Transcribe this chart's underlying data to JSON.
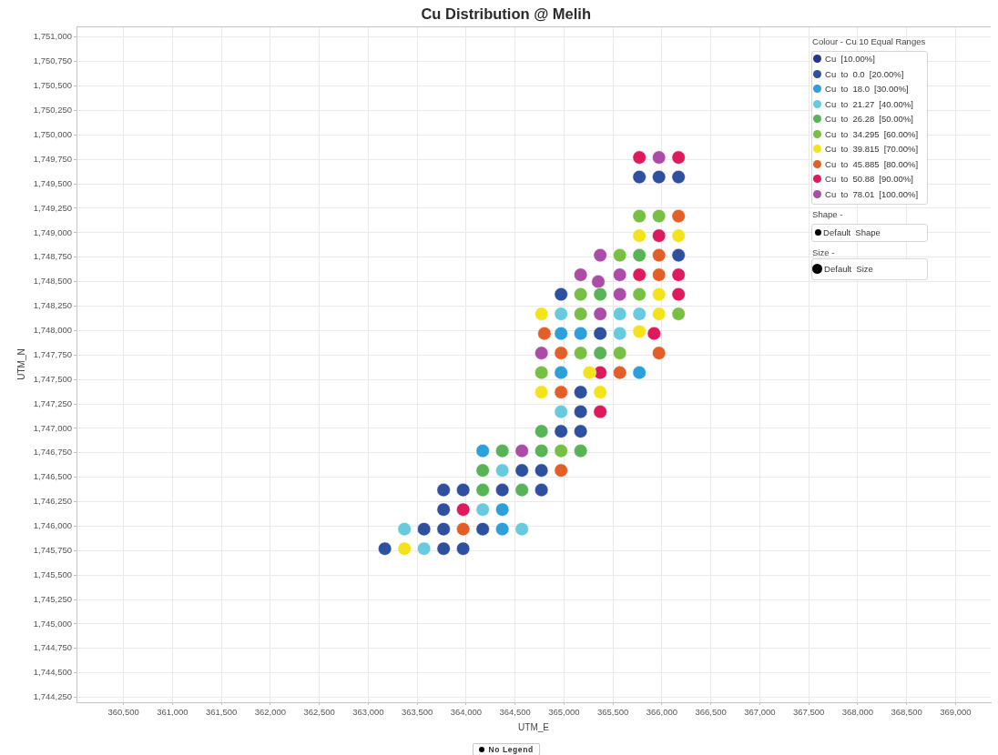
{
  "chart_data": {
    "type": "scatter",
    "title": "Cu Distribution @ Melih",
    "xlabel": "UTM_E",
    "ylabel": "UTM_N",
    "legend_title": "Colour - Cu 10 Equal Ranges",
    "legend": "top right",
    "grid": true,
    "marker": "circle",
    "xlim": [
      360020,
      369360
    ],
    "ylim": [
      1744200,
      1751110
    ],
    "xticks": [
      {
        "value": 360500,
        "label": "360,500"
      },
      {
        "value": 361000,
        "label": "361,000"
      },
      {
        "value": 361500,
        "label": "361,500"
      },
      {
        "value": 362000,
        "label": "362,000"
      },
      {
        "value": 362500,
        "label": "362,500"
      },
      {
        "value": 363000,
        "label": "363,000"
      },
      {
        "value": 363500,
        "label": "363,500"
      },
      {
        "value": 364000,
        "label": "364,000"
      },
      {
        "value": 364500,
        "label": "364,500"
      },
      {
        "value": 365000,
        "label": "365,000"
      },
      {
        "value": 365500,
        "label": "365,500"
      },
      {
        "value": 366000,
        "label": "366,000"
      },
      {
        "value": 366500,
        "label": "366,500"
      },
      {
        "value": 367000,
        "label": "367,000"
      },
      {
        "value": 367500,
        "label": "367,500"
      },
      {
        "value": 368000,
        "label": "368,000"
      },
      {
        "value": 368500,
        "label": "368,500"
      },
      {
        "value": 369000,
        "label": "369,000"
      }
    ],
    "yticks": [
      {
        "value": 1744250,
        "label": "1,744,250"
      },
      {
        "value": 1744500,
        "label": "1,744,500"
      },
      {
        "value": 1744750,
        "label": "1,744,750"
      },
      {
        "value": 1745000,
        "label": "1,745,000"
      },
      {
        "value": 1745250,
        "label": "1,745,250"
      },
      {
        "value": 1745500,
        "label": "1,745,500"
      },
      {
        "value": 1745750,
        "label": "1,745,750"
      },
      {
        "value": 1746000,
        "label": "1,746,000"
      },
      {
        "value": 1746250,
        "label": "1,746,250"
      },
      {
        "value": 1746500,
        "label": "1,746,500"
      },
      {
        "value": 1746750,
        "label": "1,746,750"
      },
      {
        "value": 1747000,
        "label": "1,747,000"
      },
      {
        "value": 1747250,
        "label": "1,747,250"
      },
      {
        "value": 1747500,
        "label": "1,747,500"
      },
      {
        "value": 1747750,
        "label": "1,747,750"
      },
      {
        "value": 1748000,
        "label": "1,748,000"
      },
      {
        "value": 1748250,
        "label": "1,748,250"
      },
      {
        "value": 1748500,
        "label": "1,748,500"
      },
      {
        "value": 1748750,
        "label": "1,748,750"
      },
      {
        "value": 1749000,
        "label": "1,749,000"
      },
      {
        "value": 1749250,
        "label": "1,749,250"
      },
      {
        "value": 1749500,
        "label": "1,749,500"
      },
      {
        "value": 1749750,
        "label": "1,749,750"
      },
      {
        "value": 1750000,
        "label": "1,750,000"
      },
      {
        "value": 1750250,
        "label": "1,750,250"
      },
      {
        "value": 1750500,
        "label": "1,750,500"
      },
      {
        "value": 1750750,
        "label": "1,750,750"
      },
      {
        "value": 1751000,
        "label": "1,751,000"
      }
    ],
    "series": [
      {
        "name": "Cu [10.00%]",
        "color": "#27348b"
      },
      {
        "name": "Cu to 0.0 [20.00%]",
        "color": "#2f509f",
        "x": [
          365770,
          365970,
          366170,
          366170,
          364970,
          365370,
          365170,
          365170,
          364970,
          365170,
          364570,
          364770,
          363770,
          363970,
          364370,
          364770,
          363770,
          363570,
          363770,
          364170,
          363170,
          363770,
          363970
        ],
        "values": [
          1749570,
          1749570,
          1749570,
          1748770,
          1748370,
          1747970,
          1747370,
          1747170,
          1746970,
          1746970,
          1746570,
          1746570,
          1746370,
          1746370,
          1746370,
          1746370,
          1746170,
          1745970,
          1745970,
          1745970,
          1745770,
          1745770,
          1745770
        ]
      },
      {
        "name": "Cu to 18.0 [30.00%]",
        "color": "#2ba0da",
        "x": [
          364970,
          365170,
          364970,
          365770,
          364170,
          364370,
          364370
        ],
        "values": [
          1747970,
          1747970,
          1747570,
          1747570,
          1746770,
          1746170,
          1745970
        ]
      },
      {
        "name": "Cu to 21.27 [40.00%]",
        "color": "#68cade",
        "x": [
          364970,
          365570,
          365770,
          365570,
          364970,
          364370,
          364170,
          363370,
          364570,
          363570
        ],
        "values": [
          1748170,
          1748170,
          1748170,
          1747970,
          1747170,
          1746570,
          1746170,
          1745970,
          1745970,
          1745770
        ]
      },
      {
        "name": "Cu to 26.28 [50.00%]",
        "color": "#58b456",
        "x": [
          365770,
          365370,
          365370,
          364770,
          364370,
          364770,
          365170,
          364170,
          364170,
          364570
        ],
        "values": [
          1748770,
          1748370,
          1747770,
          1746970,
          1746770,
          1746770,
          1746770,
          1746570,
          1746370,
          1746370
        ]
      },
      {
        "name": "Cu to 34.295 [60.00%]",
        "color": "#78c043",
        "x": [
          365770,
          365970,
          365570,
          365170,
          365770,
          365170,
          366170,
          365170,
          365570,
          364770,
          364970
        ],
        "values": [
          1749170,
          1749170,
          1748770,
          1748370,
          1748370,
          1748170,
          1748170,
          1747770,
          1747770,
          1747570,
          1746770
        ]
      },
      {
        "name": "Cu to 39.815 [70.00%]",
        "color": "#f3e31b",
        "x": [
          365770,
          366170,
          365970,
          364770,
          365970,
          365770,
          365260,
          364770,
          365370,
          363370
        ],
        "values": [
          1748970,
          1748970,
          1748370,
          1748170,
          1748170,
          1747990,
          1747570,
          1747370,
          1747370,
          1745770
        ]
      },
      {
        "name": "Cu to 45.885 [80.00%]",
        "color": "#e45f28",
        "x": [
          366170,
          365970,
          365970,
          364800,
          364970,
          365970,
          365570,
          364970,
          364970,
          363970
        ],
        "values": [
          1749170,
          1748770,
          1748570,
          1747970,
          1747770,
          1747770,
          1747570,
          1747370,
          1746570,
          1745970
        ]
      },
      {
        "name": "Cu to 50.88 [90.00%]",
        "color": "#de1a5c",
        "x": [
          365770,
          366170,
          365970,
          365770,
          366170,
          366170,
          365920,
          365370,
          365370,
          363970
        ],
        "values": [
          1749770,
          1749770,
          1748970,
          1748570,
          1748570,
          1748370,
          1747970,
          1747570,
          1747170,
          1746170
        ]
      },
      {
        "name": "Cu to 78.01 [100.00%]",
        "color": "#ab4ca7",
        "x": [
          365970,
          365370,
          365170,
          365350,
          365570,
          365570,
          365370,
          364770,
          364570
        ],
        "values": [
          1749770,
          1748770,
          1748570,
          1748500,
          1748570,
          1748370,
          1748170,
          1747770,
          1746770
        ]
      }
    ],
    "annotations": [
      "Shape -",
      "Default Shape",
      "Size -",
      "Default Size",
      "No Legend"
    ]
  }
}
